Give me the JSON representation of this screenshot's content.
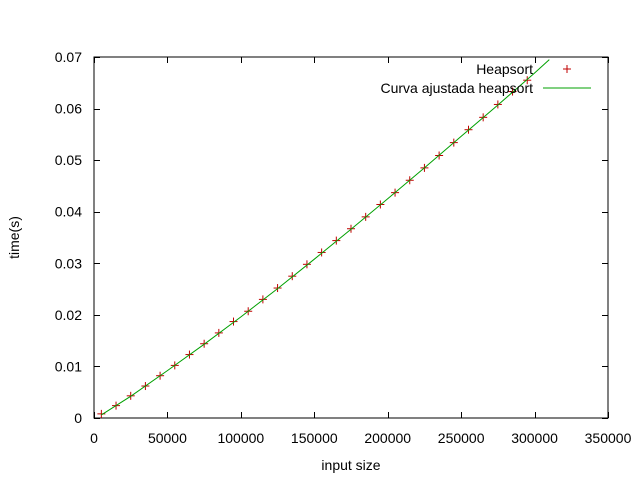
{
  "chart_data": {
    "type": "scatter",
    "xlabel": "input size",
    "ylabel": "time(s)",
    "xlim": [
      0,
      350000
    ],
    "ylim": [
      0,
      0.07
    ],
    "x_ticks": [
      "0",
      "50000",
      "100000",
      "150000",
      "200000",
      "250000",
      "300000",
      "350000"
    ],
    "y_ticks": [
      "0",
      "0.01",
      "0.02",
      "0.03",
      "0.04",
      "0.05",
      "0.06",
      "0.07"
    ],
    "grid": false,
    "legend_position": "top-right",
    "series": [
      {
        "name": "Heapsort",
        "kind": "points",
        "marker": "plus",
        "color": "#c00000",
        "x": [
          5000,
          15000,
          25000,
          35000,
          45000,
          55000,
          65000,
          75000,
          85000,
          95000,
          105000,
          115000,
          125000,
          135000,
          145000,
          155000,
          165000,
          175000,
          185000,
          195000,
          205000,
          215000,
          225000,
          235000,
          245000,
          255000,
          265000,
          275000,
          285000,
          295000
        ],
        "y": [
          0.0008,
          0.0024,
          0.0043,
          0.0062,
          0.0082,
          0.0102,
          0.0123,
          0.0144,
          0.0165,
          0.0187,
          0.0207,
          0.023,
          0.0252,
          0.0275,
          0.0298,
          0.0321,
          0.0344,
          0.0367,
          0.039,
          0.0414,
          0.0437,
          0.0461,
          0.0485,
          0.0509,
          0.0534,
          0.0559,
          0.0583,
          0.0608,
          0.0633,
          0.0655
        ]
      },
      {
        "name": "Curva ajustada heapsort",
        "kind": "line",
        "color": "#00a000",
        "x": [
          5000,
          25000,
          50000,
          75000,
          100000,
          125000,
          150000,
          175000,
          200000,
          225000,
          250000,
          275000,
          300000,
          310000
        ],
        "y": [
          0.0006,
          0.0042,
          0.0092,
          0.0143,
          0.0196,
          0.0251,
          0.0308,
          0.0366,
          0.0425,
          0.0485,
          0.0546,
          0.0607,
          0.0669,
          0.0695
        ]
      }
    ]
  }
}
